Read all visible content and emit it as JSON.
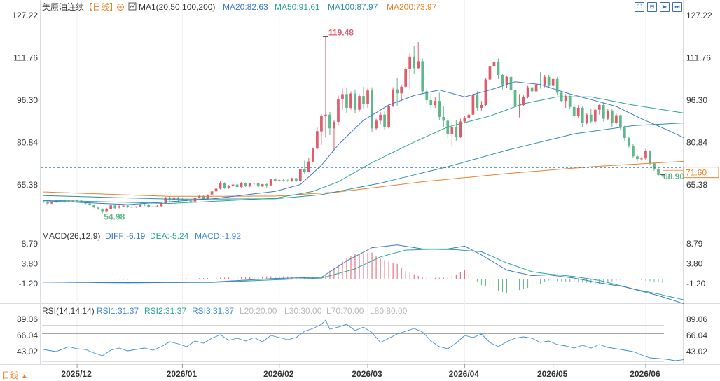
{
  "header": {
    "instrument": "美原油连续",
    "period": "【日线】",
    "main_indicator": "MA1(20,50,100,200)",
    "ma20": "MA20:82.63",
    "ma50": "MA50:91.61",
    "ma100": "MA100:87.97",
    "ma200": "MA200:73.97"
  },
  "macd_header": {
    "name": "MACD(26,12,9)",
    "diff": "DIFF:-6.19",
    "dea": "DEA:-5.24",
    "macd": "MACD:-1.92"
  },
  "rsi_header": {
    "name": "RSI(14,14,14)",
    "rsi1": "RSI1:31.37",
    "rsi2": "RSI2:31.37",
    "rsi3": "RSI3:31.37",
    "l20": "L20:20.00",
    "l30": "L30:30.00",
    "l70": "L70:70.00",
    "l80": "L80:80.00"
  },
  "toolbar_icons": [
    "fit-icon",
    "zoom-icon",
    "play-icon",
    "next-icon"
  ],
  "period_selector": {
    "label": "日线",
    "arrow": "▲"
  },
  "colors": {
    "up": "#e05c6a",
    "down": "#5db88a",
    "ma20": "#3a78c9",
    "ma50": "#2aa59a",
    "ma100": "#2f8fa8",
    "ma200": "#e8822c",
    "rsi": "#3b8ad8"
  },
  "chart_data": {
    "type": "candlestick",
    "x_ticks": [
      "2025/12",
      "2026/01",
      "2026/02",
      "2026/03",
      "2026/04",
      "2026/05",
      "2026/06"
    ],
    "price_axis": {
      "ticks": [
        127.22,
        111.76,
        96.3,
        80.84,
        65.38
      ]
    },
    "macd_axis": {
      "ticks": [
        8.79,
        3.8,
        -1.2
      ]
    },
    "rsi_axis": {
      "ticks": [
        89.06,
        66.04,
        43.02
      ]
    },
    "annotations": {
      "high": "119.48",
      "low": "54.98",
      "last": "68.90",
      "ref": "71.60"
    },
    "candles": [
      [
        59.3,
        59.5,
        59.1,
        58.7
      ],
      [
        59.0,
        59.6,
        58.6,
        58.2
      ],
      [
        58.6,
        59.0,
        59.2,
        58.4
      ],
      [
        59.2,
        59.4,
        59.7,
        58.9
      ],
      [
        59.8,
        60.1,
        59.6,
        59.3
      ],
      [
        59.6,
        59.8,
        59.3,
        58.9
      ],
      [
        59.3,
        59.8,
        59.4,
        59.0
      ],
      [
        59.4,
        59.9,
        59.4,
        59.0
      ],
      [
        59.5,
        59.8,
        59.7,
        59.3
      ],
      [
        59.6,
        59.8,
        59.0,
        58.8
      ],
      [
        59.0,
        59.5,
        58.6,
        58.3
      ],
      [
        58.6,
        58.8,
        58.0,
        57.6
      ],
      [
        58.0,
        58.2,
        57.2,
        56.9
      ],
      [
        57.1,
        57.3,
        56.6,
        56.3
      ],
      [
        56.6,
        56.8,
        55.8,
        54.98
      ],
      [
        55.8,
        56.9,
        56.7,
        55.6
      ],
      [
        56.6,
        58.1,
        57.9,
        56.4
      ],
      [
        57.9,
        58.1,
        56.9,
        56.6
      ],
      [
        57.1,
        57.9,
        57.6,
        56.8
      ],
      [
        57.6,
        58.2,
        57.8,
        57.2
      ],
      [
        57.8,
        58.2,
        57.3,
        57.0
      ],
      [
        57.4,
        57.9,
        57.3,
        56.9
      ],
      [
        57.3,
        57.6,
        57.5,
        57.0
      ],
      [
        57.5,
        58.4,
        58.2,
        57.3
      ],
      [
        58.2,
        58.6,
        58.0,
        57.6
      ],
      [
        58.0,
        58.4,
        57.4,
        57.1
      ],
      [
        57.5,
        57.9,
        57.5,
        57.1
      ],
      [
        57.5,
        58.1,
        57.6,
        57.2
      ],
      [
        57.6,
        58.9,
        58.7,
        57.5
      ],
      [
        58.7,
        61.0,
        60.6,
        58.5
      ],
      [
        60.6,
        61.3,
        60.1,
        59.6
      ],
      [
        60.0,
        61.0,
        60.8,
        59.7
      ],
      [
        60.8,
        61.0,
        59.9,
        59.3
      ],
      [
        60.1,
        60.5,
        60.0,
        59.8
      ],
      [
        60.0,
        60.3,
        59.6,
        59.4
      ],
      [
        59.6,
        60.0,
        59.3,
        59.2
      ],
      [
        59.3,
        60.9,
        60.7,
        59.2
      ],
      [
        60.6,
        61.6,
        61.2,
        60.5
      ],
      [
        61.2,
        61.8,
        60.3,
        60.0
      ],
      [
        60.4,
        61.9,
        61.8,
        60.1
      ],
      [
        61.9,
        63.2,
        63.0,
        61.7
      ],
      [
        63.0,
        64.2,
        64.0,
        62.6
      ],
      [
        64.0,
        66.8,
        66.0,
        63.7
      ],
      [
        66.0,
        66.3,
        64.3,
        63.9
      ],
      [
        64.4,
        65.3,
        64.9,
        63.9
      ],
      [
        64.9,
        65.9,
        65.5,
        64.6
      ],
      [
        65.5,
        66.0,
        64.6,
        64.3
      ],
      [
        64.6,
        66.4,
        65.9,
        64.4
      ],
      [
        65.9,
        66.2,
        64.9,
        64.6
      ],
      [
        64.9,
        66.1,
        65.9,
        64.6
      ],
      [
        65.9,
        66.8,
        66.1,
        65.2
      ],
      [
        66.1,
        66.3,
        64.8,
        64.4
      ],
      [
        64.8,
        65.7,
        65.6,
        64.6
      ],
      [
        65.6,
        66.0,
        65.2,
        64.4
      ],
      [
        65.2,
        67.5,
        67.4,
        64.9
      ],
      [
        67.4,
        68.0,
        66.9,
        66.4
      ],
      [
        66.9,
        67.4,
        67.1,
        66.5
      ],
      [
        67.1,
        67.7,
        67.0,
        66.6
      ],
      [
        67.0,
        67.4,
        66.8,
        66.5
      ],
      [
        66.8,
        68.0,
        67.8,
        66.5
      ],
      [
        67.8,
        67.9,
        66.9,
        66.4
      ],
      [
        66.8,
        67.9,
        71.2,
        66.4
      ],
      [
        71.2,
        74.2,
        70.0,
        69.5
      ],
      [
        70.1,
        75.1,
        73.9,
        70.0
      ],
      [
        73.9,
        79.0,
        78.6,
        73.5
      ],
      [
        78.6,
        86.3,
        85.0,
        78.3
      ],
      [
        84.9,
        91.2,
        90.5,
        80.0
      ],
      [
        90.5,
        119.48,
        91.0,
        83.0
      ],
      [
        91.0,
        92.0,
        86.0,
        83.5
      ],
      [
        86.0,
        89.0,
        88.4,
        78.0
      ],
      [
        88.4,
        98.0,
        96.8,
        87.0
      ],
      [
        96.8,
        100.5,
        98.5,
        92.8
      ],
      [
        98.5,
        101.0,
        93.5,
        91.5
      ],
      [
        93.5,
        99.5,
        98.7,
        92.8
      ],
      [
        98.7,
        100.2,
        92.8,
        91.5
      ],
      [
        92.8,
        98.5,
        97.8,
        92.0
      ],
      [
        97.8,
        101.2,
        94.8,
        93.0
      ],
      [
        94.8,
        100.5,
        99.8,
        93.5
      ],
      [
        99.8,
        101.0,
        86.0,
        84.5
      ],
      [
        86.0,
        89.5,
        88.8,
        85.5
      ],
      [
        88.8,
        92.0,
        91.0,
        87.5
      ],
      [
        91.0,
        92.2,
        86.5,
        85.5
      ],
      [
        86.5,
        95.0,
        94.2,
        86.0
      ],
      [
        94.2,
        101.0,
        100.2,
        93.8
      ],
      [
        100.2,
        104.5,
        98.8,
        94.0
      ],
      [
        98.8,
        102.0,
        101.2,
        96.0
      ],
      [
        101.2,
        108.5,
        107.8,
        100.8
      ],
      [
        107.8,
        113.5,
        112.2,
        100.5
      ],
      [
        112.2,
        116.0,
        108.0,
        106.0
      ],
      [
        108.0,
        117.5,
        110.5,
        107.8
      ],
      [
        110.5,
        111.5,
        99.5,
        98.8
      ],
      [
        99.5,
        100.5,
        96.3,
        95.0
      ],
      [
        96.3,
        98.0,
        94.5,
        93.0
      ],
      [
        94.5,
        97.5,
        96.0,
        93.5
      ],
      [
        96.0,
        99.0,
        90.2,
        89.0
      ],
      [
        90.2,
        94.0,
        88.8,
        86.5
      ],
      [
        88.8,
        89.5,
        84.0,
        82.5
      ],
      [
        84.0,
        88.0,
        86.5,
        79.5
      ],
      [
        86.5,
        89.0,
        82.8,
        81.5
      ],
      [
        82.8,
        89.5,
        88.5,
        82.5
      ],
      [
        88.5,
        90.5,
        89.8,
        88.0
      ],
      [
        89.8,
        91.8,
        91.0,
        89.2
      ],
      [
        91.0,
        99.0,
        98.2,
        90.5
      ],
      [
        98.2,
        99.5,
        93.5,
        92.5
      ],
      [
        93.5,
        96.0,
        94.5,
        92.5
      ],
      [
        94.5,
        104.5,
        103.8,
        94.0
      ],
      [
        103.8,
        105.0,
        108.8,
        102.5
      ],
      [
        108.8,
        112.5,
        110.2,
        106.5
      ],
      [
        110.2,
        111.5,
        105.5,
        104.0
      ],
      [
        105.5,
        106.0,
        102.0,
        100.2
      ],
      [
        102.0,
        105.0,
        104.8,
        100.8
      ],
      [
        104.8,
        108.5,
        100.0,
        99.5
      ],
      [
        100.0,
        100.5,
        94.0,
        92.5
      ],
      [
        94.0,
        98.5,
        94.5,
        90.0
      ],
      [
        94.5,
        98.0,
        97.5,
        94.0
      ],
      [
        97.5,
        101.5,
        101.0,
        97.0
      ],
      [
        101.0,
        102.5,
        99.5,
        98.5
      ],
      [
        99.5,
        102.5,
        102.0,
        99.0
      ],
      [
        102.0,
        106.5,
        101.8,
        100.5
      ],
      [
        101.8,
        105.5,
        104.8,
        101.0
      ],
      [
        104.8,
        105.5,
        101.5,
        100.8
      ],
      [
        101.5,
        104.5,
        104.0,
        100.5
      ],
      [
        104.0,
        104.8,
        99.0,
        98.0
      ],
      [
        99.0,
        99.5,
        96.0,
        95.5
      ],
      [
        96.0,
        98.5,
        97.8,
        93.5
      ],
      [
        97.8,
        98.0,
        93.8,
        93.0
      ],
      [
        93.8,
        94.5,
        90.5,
        89.5
      ],
      [
        90.5,
        94.5,
        93.5,
        89.8
      ],
      [
        93.5,
        94.0,
        88.0,
        86.5
      ],
      [
        88.0,
        91.5,
        91.0,
        87.5
      ],
      [
        91.0,
        93.0,
        88.5,
        87.8
      ],
      [
        88.5,
        93.0,
        92.8,
        88.0
      ],
      [
        92.8,
        95.0,
        94.5,
        91.0
      ],
      [
        94.5,
        95.5,
        89.5,
        88.5
      ],
      [
        89.5,
        93.0,
        92.5,
        89.0
      ],
      [
        92.5,
        93.0,
        88.0,
        86.5
      ],
      [
        88.0,
        91.5,
        90.8,
        87.5
      ],
      [
        90.8,
        91.0,
        86.5,
        85.5
      ],
      [
        86.5,
        87.0,
        82.5,
        81.5
      ],
      [
        82.5,
        83.0,
        79.5,
        79.0
      ],
      [
        79.5,
        80.2,
        75.8,
        75.2
      ],
      [
        75.8,
        76.2,
        74.8,
        74.0
      ],
      [
        74.8,
        75.5,
        75.0,
        74.2
      ],
      [
        75.0,
        78.5,
        77.8,
        74.5
      ],
      [
        77.8,
        78.0,
        73.2,
        72.8
      ],
      [
        73.2,
        73.8,
        71.0,
        70.5
      ],
      [
        71.0,
        71.5,
        69.0,
        68.5
      ],
      [
        69.0,
        69.5,
        68.9,
        68.2
      ]
    ],
    "ma20": [
      [
        0,
        59.6
      ],
      [
        20,
        58.2
      ],
      [
        40,
        60.3
      ],
      [
        55,
        63.0
      ],
      [
        61,
        65.5
      ],
      [
        66,
        72.5
      ],
      [
        70,
        80.0
      ],
      [
        76,
        89.0
      ],
      [
        82,
        94.5
      ],
      [
        88,
        98.0
      ],
      [
        94,
        100.0
      ],
      [
        100,
        97.5
      ],
      [
        106,
        100.0
      ],
      [
        112,
        103.0
      ],
      [
        118,
        102.0
      ],
      [
        124,
        99.0
      ],
      [
        130,
        96.5
      ],
      [
        136,
        94.0
      ],
      [
        142,
        89.5
      ],
      [
        148,
        85.5
      ],
      [
        152,
        82.63
      ]
    ],
    "ma50": [
      [
        0,
        59.8
      ],
      [
        30,
        58.6
      ],
      [
        55,
        60.5
      ],
      [
        64,
        63.0
      ],
      [
        70,
        66.5
      ],
      [
        78,
        73.5
      ],
      [
        88,
        81.0
      ],
      [
        96,
        86.5
      ],
      [
        106,
        90.5
      ],
      [
        114,
        95.0
      ],
      [
        122,
        97.5
      ],
      [
        130,
        97.5
      ],
      [
        140,
        94.5
      ],
      [
        152,
        91.61
      ]
    ],
    "ma100": [
      [
        0,
        61.5
      ],
      [
        30,
        60.2
      ],
      [
        55,
        60.3
      ],
      [
        66,
        61.8
      ],
      [
        80,
        66.0
      ],
      [
        96,
        72.0
      ],
      [
        110,
        78.0
      ],
      [
        126,
        84.0
      ],
      [
        140,
        87.0
      ],
      [
        152,
        87.97
      ]
    ],
    "ma200": [
      [
        0,
        62.8
      ],
      [
        30,
        61.2
      ],
      [
        55,
        61.3
      ],
      [
        70,
        62.8
      ],
      [
        90,
        66.5
      ],
      [
        110,
        69.5
      ],
      [
        130,
        72.0
      ],
      [
        152,
        73.97
      ]
    ],
    "macd_diff": [
      [
        0,
        -0.8
      ],
      [
        20,
        -1.0
      ],
      [
        40,
        -0.8
      ],
      [
        55,
        0.1
      ],
      [
        66,
        0.4
      ],
      [
        72,
        4.5
      ],
      [
        78,
        7.8
      ],
      [
        84,
        8.5
      ],
      [
        90,
        7.5
      ],
      [
        96,
        7.5
      ],
      [
        100,
        8.2
      ],
      [
        104,
        6.0
      ],
      [
        110,
        2.2
      ],
      [
        116,
        0.8
      ],
      [
        120,
        1.0
      ],
      [
        126,
        0.2
      ],
      [
        132,
        -1.0
      ],
      [
        138,
        -2.0
      ],
      [
        146,
        -4.2
      ],
      [
        152,
        -6.19
      ]
    ],
    "macd_dea": [
      [
        0,
        -0.8
      ],
      [
        20,
        -0.9
      ],
      [
        40,
        -0.9
      ],
      [
        56,
        -0.2
      ],
      [
        66,
        0.2
      ],
      [
        74,
        2.5
      ],
      [
        80,
        5.5
      ],
      [
        86,
        7.2
      ],
      [
        92,
        7.4
      ],
      [
        98,
        7.3
      ],
      [
        104,
        6.8
      ],
      [
        110,
        4.0
      ],
      [
        116,
        1.8
      ],
      [
        120,
        1.2
      ],
      [
        126,
        0.6
      ],
      [
        132,
        -0.4
      ],
      [
        140,
        -2.5
      ],
      [
        146,
        -3.8
      ],
      [
        152,
        -5.24
      ]
    ],
    "rsi": [
      [
        0,
        46
      ],
      [
        3,
        43
      ],
      [
        6,
        50
      ],
      [
        8,
        47
      ],
      [
        10,
        46
      ],
      [
        12,
        41
      ],
      [
        14,
        37
      ],
      [
        16,
        45
      ],
      [
        18,
        48
      ],
      [
        20,
        44
      ],
      [
        22,
        46
      ],
      [
        24,
        48
      ],
      [
        26,
        45
      ],
      [
        28,
        50
      ],
      [
        30,
        57
      ],
      [
        32,
        54
      ],
      [
        34,
        50
      ],
      [
        36,
        58
      ],
      [
        38,
        55
      ],
      [
        40,
        62
      ],
      [
        42,
        67
      ],
      [
        44,
        59
      ],
      [
        46,
        62
      ],
      [
        48,
        58
      ],
      [
        50,
        63
      ],
      [
        52,
        57
      ],
      [
        54,
        66
      ],
      [
        56,
        63
      ],
      [
        58,
        60
      ],
      [
        60,
        63
      ],
      [
        62,
        72
      ],
      [
        64,
        76
      ],
      [
        66,
        82
      ],
      [
        67,
        88
      ],
      [
        68,
        75
      ],
      [
        70,
        78
      ],
      [
        72,
        82
      ],
      [
        74,
        73
      ],
      [
        76,
        78
      ],
      [
        78,
        70
      ],
      [
        80,
        56
      ],
      [
        82,
        62
      ],
      [
        84,
        68
      ],
      [
        86,
        72
      ],
      [
        88,
        76
      ],
      [
        90,
        71
      ],
      [
        92,
        58
      ],
      [
        94,
        50
      ],
      [
        96,
        47
      ],
      [
        98,
        55
      ],
      [
        100,
        66
      ],
      [
        102,
        63
      ],
      [
        104,
        68
      ],
      [
        106,
        56
      ],
      [
        108,
        50
      ],
      [
        110,
        57
      ],
      [
        112,
        62
      ],
      [
        114,
        64
      ],
      [
        116,
        62
      ],
      [
        118,
        56
      ],
      [
        120,
        58
      ],
      [
        122,
        53
      ],
      [
        124,
        51
      ],
      [
        126,
        48
      ],
      [
        128,
        52
      ],
      [
        130,
        48
      ],
      [
        132,
        53
      ],
      [
        134,
        49
      ],
      [
        136,
        47
      ],
      [
        138,
        45
      ],
      [
        140,
        43
      ],
      [
        142,
        38
      ],
      [
        144,
        34
      ],
      [
        146,
        33
      ],
      [
        148,
        32
      ],
      [
        150,
        30
      ],
      [
        152,
        31.37
      ]
    ]
  }
}
